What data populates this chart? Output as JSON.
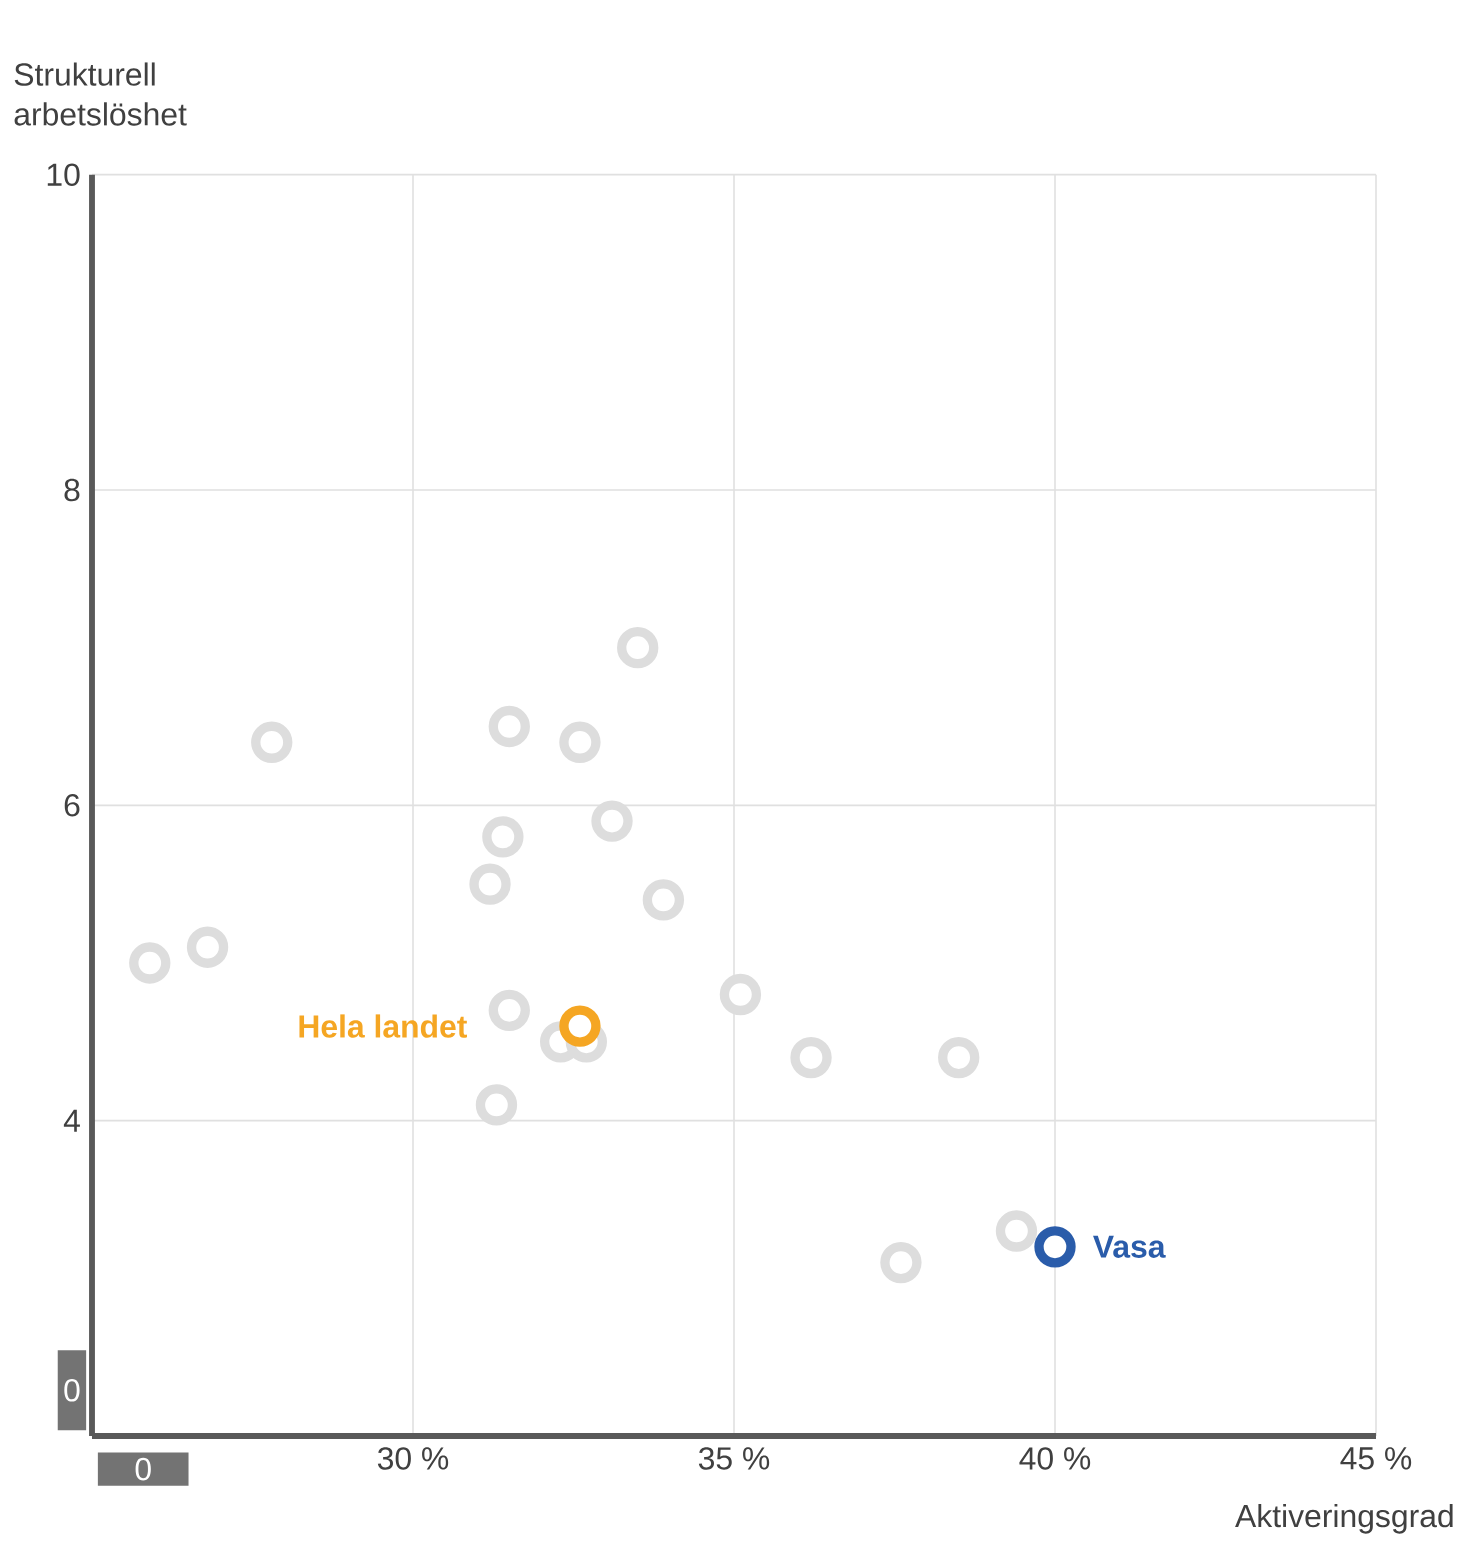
{
  "chart_data": {
    "type": "scatter",
    "xlabel": "Aktiveringsgrad",
    "ylabel": "Strukturell arbetslöshet",
    "xlim": [
      25,
      45
    ],
    "ylim": [
      2,
      10
    ],
    "xticks": [
      {
        "value": 30,
        "label": "30 %"
      },
      {
        "value": 35,
        "label": "35 %"
      },
      {
        "value": 40,
        "label": "40 %"
      },
      {
        "value": 45,
        "label": "45 %"
      }
    ],
    "yticks": [
      4,
      6,
      8,
      10
    ],
    "annotations": [
      "0",
      "0"
    ],
    "grid": true,
    "series": [
      {
        "color": "#dddddd",
        "x": [
          25.9,
          26.8,
          27.8,
          31.5,
          32.6,
          33.5,
          31.4,
          33.1,
          31.2,
          33.9,
          31.5,
          32.3,
          32.7,
          31.3,
          35.1,
          36.2,
          38.5,
          37.6,
          39.4
        ],
        "values": [
          5.0,
          5.1,
          6.4,
          6.5,
          6.4,
          7.0,
          5.8,
          5.9,
          5.5,
          5.4,
          4.7,
          4.5,
          4.5,
          4.1,
          4.8,
          4.4,
          4.4,
          3.1,
          3.3
        ]
      },
      {
        "name": "Hela landet",
        "color": "#f5a623",
        "x": [
          32.6
        ],
        "values": [
          4.6
        ]
      },
      {
        "name": "Vasa",
        "color": "#2a5caa",
        "x": [
          40.0
        ],
        "values": [
          3.2
        ]
      }
    ]
  }
}
